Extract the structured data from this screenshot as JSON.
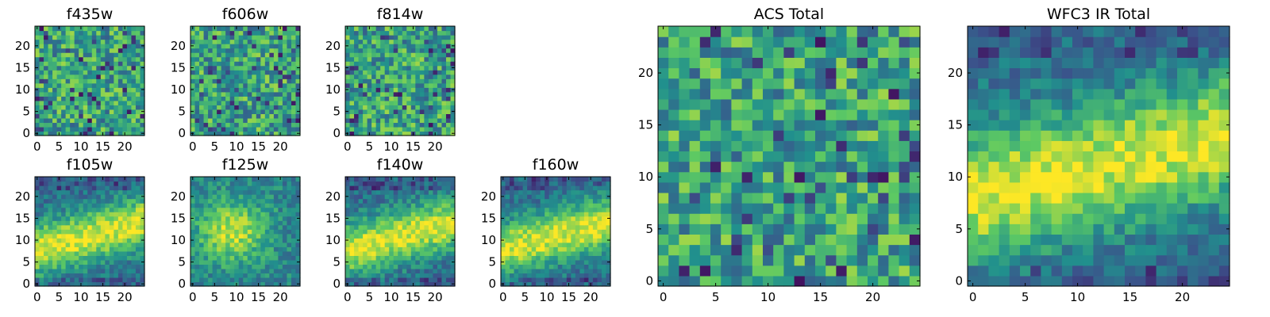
{
  "chart_data": {
    "type": "heatmap",
    "colormap": "viridis",
    "colormap_stops": [
      "#440154",
      "#3b528b",
      "#21908d",
      "#5dc963",
      "#fde725"
    ],
    "image_size": [
      25,
      25
    ],
    "panels": [
      {
        "title": "f435w",
        "xticks": [
          "0",
          "5",
          "10",
          "15",
          "20"
        ],
        "yticks": [
          "0",
          "5",
          "10",
          "15",
          "20"
        ],
        "pattern": "noise",
        "seed": 11
      },
      {
        "title": "f606w",
        "xticks": [
          "0",
          "5",
          "10",
          "15",
          "20"
        ],
        "yticks": [
          "0",
          "5",
          "10",
          "15",
          "20"
        ],
        "pattern": "noise",
        "seed": 23
      },
      {
        "title": "f814w",
        "xticks": [
          "0",
          "5",
          "10",
          "15",
          "20"
        ],
        "yticks": [
          "0",
          "5",
          "10",
          "15",
          "20"
        ],
        "pattern": "noise",
        "seed": 37
      },
      {
        "title": "f105w",
        "xticks": [
          "0",
          "5",
          "10",
          "15",
          "20"
        ],
        "yticks": [
          "0",
          "5",
          "10",
          "15",
          "20"
        ],
        "pattern": "band",
        "seed": 41
      },
      {
        "title": "f125w",
        "xticks": [
          "0",
          "5",
          "10",
          "15",
          "20"
        ],
        "yticks": [
          "0",
          "5",
          "10",
          "15",
          "20"
        ],
        "pattern": "blob",
        "seed": 53
      },
      {
        "title": "f140w",
        "xticks": [
          "0",
          "5",
          "10",
          "15",
          "20"
        ],
        "yticks": [
          "0",
          "5",
          "10",
          "15",
          "20"
        ],
        "pattern": "band",
        "seed": 67
      },
      {
        "title": "f160w",
        "xticks": [
          "0",
          "5",
          "10",
          "15",
          "20"
        ],
        "yticks": [
          "0",
          "5",
          "10",
          "15",
          "20"
        ],
        "pattern": "band",
        "seed": 79
      },
      {
        "title": "ACS Total",
        "xticks": [
          "0",
          "5",
          "10",
          "15",
          "20"
        ],
        "yticks": [
          "0",
          "5",
          "10",
          "15",
          "20"
        ],
        "pattern": "noise",
        "seed": 97
      },
      {
        "title": "WFC3 IR Total",
        "xticks": [
          "0",
          "5",
          "10",
          "15",
          "20"
        ],
        "yticks": [
          "0",
          "5",
          "10",
          "15",
          "20"
        ],
        "pattern": "band",
        "seed": 131
      }
    ]
  }
}
